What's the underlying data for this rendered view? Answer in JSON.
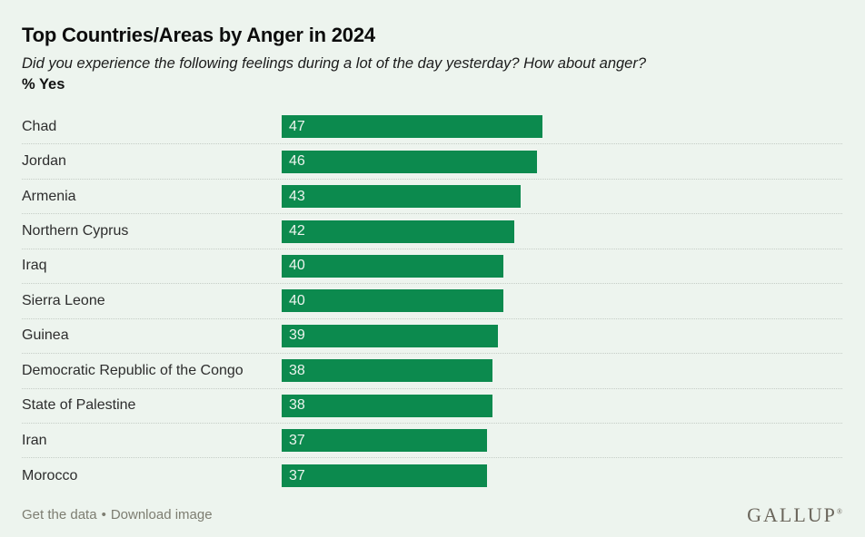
{
  "header": {
    "title": "Top Countries/Areas by Anger in 2024",
    "subtitle": "Did you experience the following feelings during a lot of the day yesterday? How about anger?",
    "unit_label": "% Yes"
  },
  "chart_data": {
    "type": "bar",
    "orientation": "horizontal",
    "title": "Top Countries/Areas by Anger in 2024",
    "subtitle": "Did you experience the following feelings during a lot of the day yesterday? How about anger?",
    "unit": "% Yes",
    "categories": [
      "Chad",
      "Jordan",
      "Armenia",
      "Northern Cyprus",
      "Iraq",
      "Sierra Leone",
      "Guinea",
      "Democratic Republic of the Congo",
      "State of Palestine",
      "Iran",
      "Morocco"
    ],
    "values": [
      47,
      46,
      43,
      42,
      40,
      40,
      39,
      38,
      38,
      37,
      37
    ],
    "value_labels_shown": true,
    "axes_shown": false,
    "grid": "dotted-row-separators",
    "legend": "none",
    "bar_color": "#0c8a4e"
  },
  "footer": {
    "get_the_data_label": "Get the data",
    "separator": "•",
    "download_image_label": "Download image",
    "brand": "GALLUP",
    "trademark": "®"
  },
  "colors": {
    "background": "#edf4ee",
    "bar": "#0c8a4e",
    "bar_value_text": "#ecf4ee",
    "label_text": "#2d2d2d",
    "separator": "#c5cdc6",
    "footer_text": "#7d7d71",
    "brand_text": "#6b665c"
  }
}
